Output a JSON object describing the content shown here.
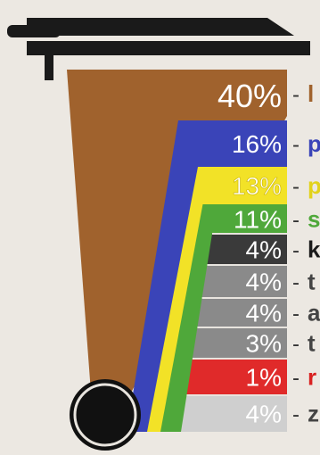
{
  "chart_data": {
    "type": "bar",
    "title": "",
    "xlabel": "",
    "ylabel": "",
    "values": [
      40,
      16,
      13,
      11,
      4,
      4,
      4,
      3,
      1,
      4
    ],
    "value_labels": [
      "40%",
      "16%",
      "13%",
      "11%",
      "4%",
      "4%",
      "4%",
      "3%",
      "1%",
      "4%"
    ],
    "colors": [
      "#a0622d",
      "#3a44b8",
      "#f2e227",
      "#4fa83a",
      "#3a3a3a",
      "#8a8a8a",
      "#8a8a8a",
      "#8a8a8a",
      "#e02a2a",
      "#cfcfcf"
    ],
    "visible_label_fragments": [
      "l",
      "p",
      "p",
      "s",
      "k",
      "t",
      "a",
      "t",
      "r",
      "z"
    ],
    "fragment_colors": [
      "#a0622d",
      "#3a44b8",
      "#e2d21c",
      "#4fa83a",
      "#1a1a1a",
      "#444444",
      "#444444",
      "#444444",
      "#d92222",
      "#444444"
    ]
  }
}
